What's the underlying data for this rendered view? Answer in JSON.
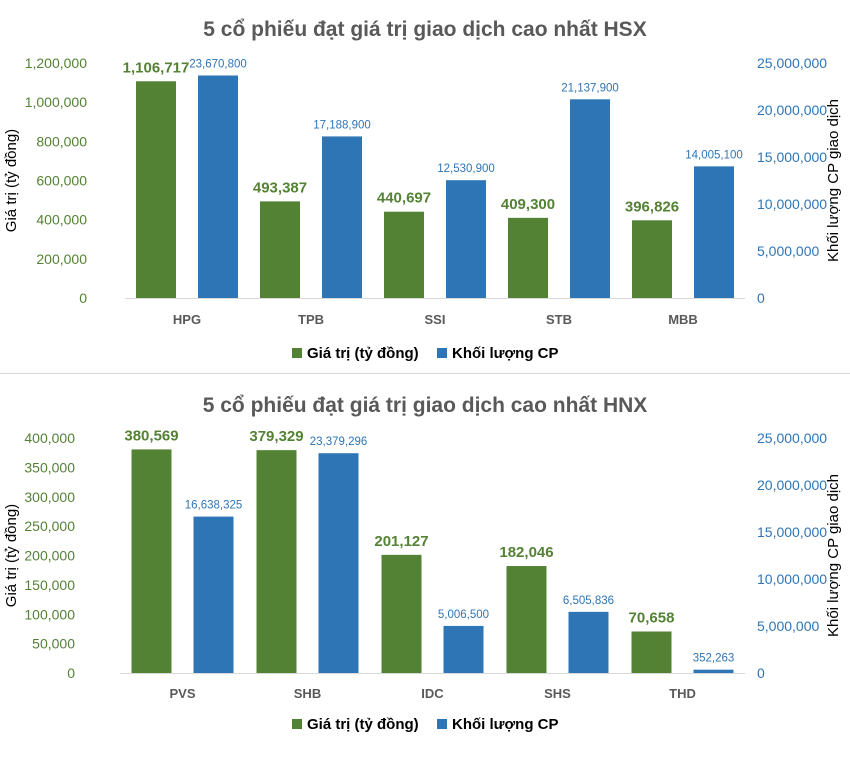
{
  "colors": {
    "value": "#548235",
    "volume": "#2e75b6",
    "title": "#595959",
    "category": "#595959",
    "axis_title": "#000000"
  },
  "chart_data": [
    {
      "type": "bar",
      "title": "5 cổ phiếu đạt giá trị giao dịch cao nhất HSX",
      "categories": [
        "HPG",
        "TPB",
        "SSI",
        "STB",
        "MBB"
      ],
      "series": [
        {
          "name": "Giá trị (tỷ đồng)",
          "axis": "left",
          "values": [
            1106717,
            493387,
            440697,
            409300,
            396826
          ],
          "labels": [
            "1,106,717",
            "493,387",
            "440,697",
            "409,300",
            "396,826"
          ]
        },
        {
          "name": "Khối lượng CP",
          "axis": "right",
          "values": [
            23670800,
            17188900,
            12530900,
            21137900,
            14005100
          ],
          "labels": [
            "23,670,800",
            "17,188,900",
            "12,530,900",
            "21,137,900",
            "14,005,100"
          ]
        }
      ],
      "ylabel": "Giá trị (tỷ đồng)",
      "y2label": "Khối lượng CP giao dịch",
      "ylim": [
        0,
        1200000
      ],
      "y2lim": [
        0,
        25000000
      ],
      "yticks": [
        "0",
        "200,000",
        "400,000",
        "600,000",
        "800,000",
        "1,000,000",
        "1,200,000"
      ],
      "y2ticks": [
        "0",
        "5,000,000",
        "10,000,000",
        "15,000,000",
        "20,000,000",
        "25,000,000"
      ],
      "legend": "bottom",
      "grid": false
    },
    {
      "type": "bar",
      "title": "5 cổ phiếu đạt giá trị giao dịch cao nhất HNX",
      "categories": [
        "PVS",
        "SHB",
        "IDC",
        "SHS",
        "THD"
      ],
      "series": [
        {
          "name": "Giá trị (tỷ đồng)",
          "axis": "left",
          "values": [
            380569,
            379329,
            201127,
            182046,
            70658
          ],
          "labels": [
            "380,569",
            "379,329",
            "201,127",
            "182,046",
            "70,658"
          ]
        },
        {
          "name": "Khối lượng CP",
          "axis": "right",
          "values": [
            16638325,
            23379296,
            5006500,
            6505836,
            352263
          ],
          "labels": [
            "16,638,325",
            "23,379,296",
            "5,006,500",
            "6,505,836",
            "352,263"
          ]
        }
      ],
      "ylabel": "Giá trị (tỷ đồng)",
      "y2label": "Khối lượng CP giao dịch",
      "ylim": [
        0,
        400000
      ],
      "y2lim": [
        0,
        25000000
      ],
      "yticks": [
        "0",
        "50,000",
        "100,000",
        "150,000",
        "200,000",
        "250,000",
        "300,000",
        "350,000",
        "400,000"
      ],
      "y2ticks": [
        "0",
        "5,000,000",
        "10,000,000",
        "15,000,000",
        "20,000,000",
        "25,000,000"
      ],
      "legend": "bottom",
      "grid": false
    }
  ]
}
